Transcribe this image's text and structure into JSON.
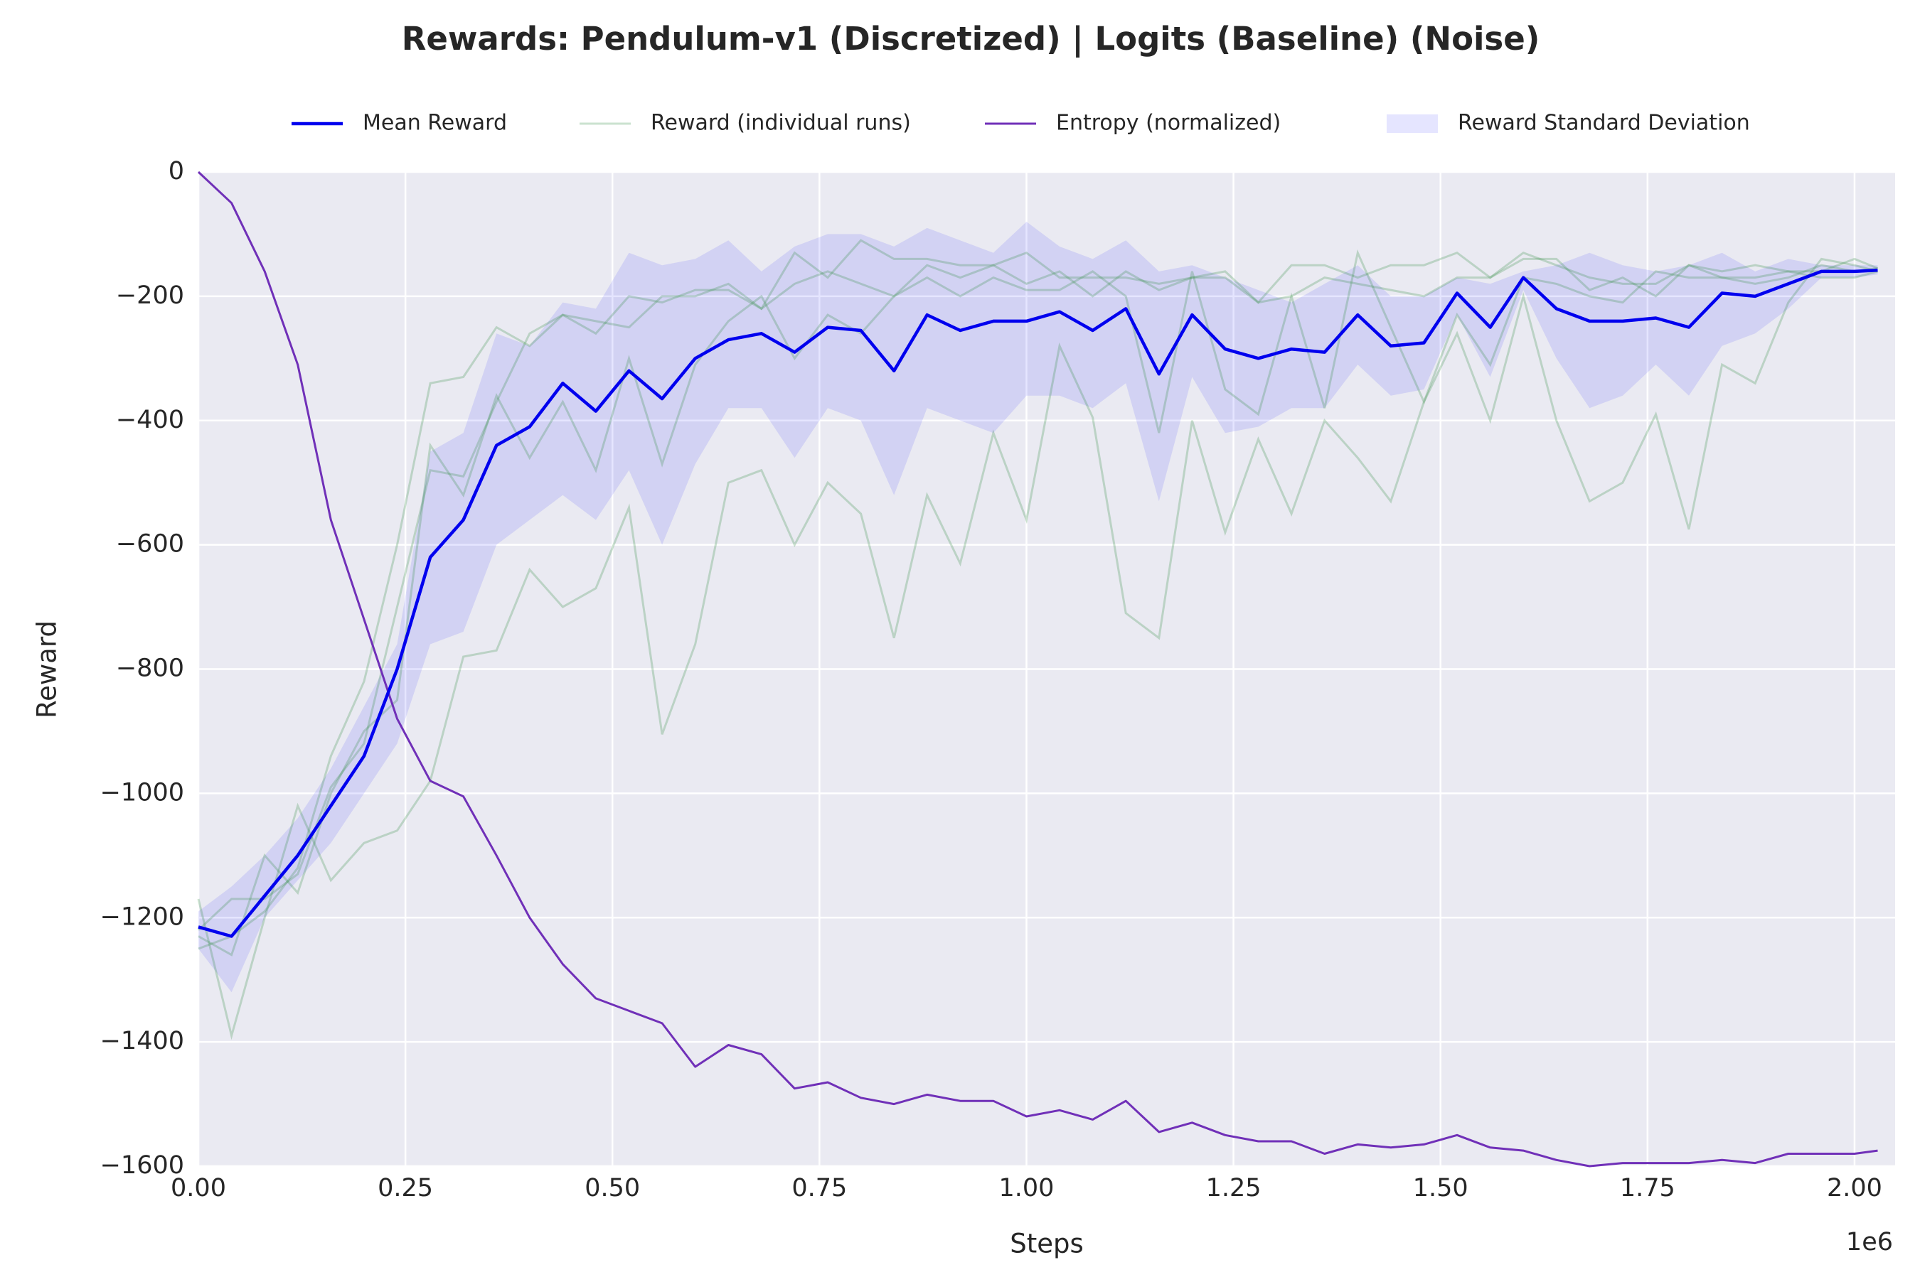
{
  "chart_data": {
    "type": "line",
    "title": "Rewards: Pendulum-v1 (Discretized) | Logits (Baseline) (Noise)",
    "x_label": "Steps",
    "y_label": "Reward",
    "x_offset_label": "1e6",
    "grid": true,
    "legend_position": "upper center",
    "x": [
      0,
      40000,
      80000,
      120000,
      160000,
      200000,
      240000,
      280000,
      320000,
      360000,
      400000,
      440000,
      480000,
      520000,
      560000,
      600000,
      640000,
      680000,
      720000,
      760000,
      800000,
      840000,
      880000,
      920000,
      960000,
      1000000,
      1040000,
      1080000,
      1120000,
      1160000,
      1200000,
      1240000,
      1280000,
      1320000,
      1360000,
      1400000,
      1440000,
      1480000,
      1520000,
      1560000,
      1600000,
      1640000,
      1680000,
      1720000,
      1760000,
      1800000,
      1840000,
      1880000,
      1920000,
      1960000,
      2000000,
      2028000
    ],
    "xlim": [
      0,
      2049000
    ],
    "xticks": [
      {
        "value": 0,
        "label": "0.00"
      },
      {
        "value": 250000,
        "label": "0.25"
      },
      {
        "value": 500000,
        "label": "0.50"
      },
      {
        "value": 750000,
        "label": "0.75"
      },
      {
        "value": 1000000,
        "label": "1.00"
      },
      {
        "value": 1250000,
        "label": "1.25"
      },
      {
        "value": 1500000,
        "label": "1.50"
      },
      {
        "value": 1750000,
        "label": "1.75"
      },
      {
        "value": 2000000,
        "label": "2.00"
      }
    ],
    "ylim": [
      -1600,
      0
    ],
    "yticks": [
      {
        "value": -1600,
        "label": "−1600"
      },
      {
        "value": -1400,
        "label": "−1400"
      },
      {
        "value": -1200,
        "label": "−1200"
      },
      {
        "value": -1000,
        "label": "−1000"
      },
      {
        "value": -800,
        "label": "−800"
      },
      {
        "value": -600,
        "label": "−600"
      },
      {
        "value": -400,
        "label": "−400"
      },
      {
        "value": -200,
        "label": "−200"
      },
      0
    ],
    "series": [
      {
        "name": "Mean Reward",
        "color": "#0000ee",
        "values": [
          -1215,
          -1230,
          -1165,
          -1100,
          -1020,
          -940,
          -800,
          -620,
          -560,
          -440,
          -410,
          -340,
          -385,
          -320,
          -365,
          -300,
          -270,
          -260,
          -290,
          -250,
          -255,
          -320,
          -230,
          -255,
          -240,
          -240,
          -225,
          -255,
          -220,
          -325,
          -230,
          -285,
          -300,
          -285,
          -290,
          -230,
          -280,
          -275,
          -195,
          -250,
          -170,
          -220,
          -240,
          -240,
          -235,
          -250,
          -195,
          -200,
          -180,
          -160,
          -160,
          -158
        ]
      },
      {
        "name": "Reward (individual runs)",
        "color": "#2e8b3e",
        "runs": [
          [
            -1170,
            -1390,
            -1200,
            -1020,
            -1140,
            -1080,
            -1060,
            -980,
            -780,
            -770,
            -640,
            -700,
            -670,
            -540,
            -905,
            -760,
            -500,
            -480,
            -600,
            -500,
            -550,
            -750,
            -520,
            -630,
            -420,
            -560,
            -280,
            -395,
            -710,
            -750,
            -400,
            -580,
            -430,
            -550,
            -400,
            -460,
            -530,
            -370,
            -260,
            -400,
            -200,
            -400,
            -530,
            -500,
            -390,
            -575,
            -310,
            -340,
            -210,
            -140,
            -150,
            -160
          ],
          [
            -1250,
            -1230,
            -1190,
            -1120,
            -940,
            -820,
            -600,
            -340,
            -330,
            -250,
            -280,
            -230,
            -260,
            -200,
            -210,
            -190,
            -190,
            -220,
            -180,
            -160,
            -180,
            -200,
            -150,
            -170,
            -150,
            -180,
            -160,
            -200,
            -160,
            -190,
            -170,
            -160,
            -210,
            -150,
            -150,
            -170,
            -150,
            -150,
            -130,
            -170,
            -130,
            -150,
            -170,
            -180,
            -180,
            -150,
            -160,
            -150,
            -160,
            -170,
            -170,
            -160
          ],
          [
            -1230,
            -1260,
            -1100,
            -1160,
            -1000,
            -900,
            -850,
            -440,
            -520,
            -360,
            -460,
            -370,
            -480,
            -300,
            -470,
            -310,
            -240,
            -200,
            -300,
            -230,
            -260,
            -200,
            -170,
            -200,
            -170,
            -190,
            -190,
            -160,
            -200,
            -420,
            -160,
            -350,
            -390,
            -200,
            -380,
            -130,
            -250,
            -370,
            -230,
            -310,
            -170,
            -180,
            -200,
            -210,
            -160,
            -170,
            -170,
            -170,
            -160,
            -160,
            -140,
            -155
          ],
          [
            -1220,
            -1170,
            -1170,
            -1130,
            -990,
            -920,
            -700,
            -480,
            -490,
            -370,
            -260,
            -230,
            -240,
            -250,
            -200,
            -200,
            -180,
            -220,
            -130,
            -170,
            -110,
            -140,
            -140,
            -150,
            -150,
            -130,
            -170,
            -170,
            -170,
            -180,
            -170,
            -170,
            -210,
            -200,
            -170,
            -180,
            -190,
            -200,
            -170,
            -170,
            -140,
            -140,
            -190,
            -170,
            -200,
            -150,
            -170,
            -180,
            -170,
            -150,
            -160,
            -155
          ]
        ]
      },
      {
        "name": "Entropy (normalized)",
        "color": "#7030b8",
        "values": [
          0,
          -50,
          -160,
          -310,
          -560,
          -720,
          -880,
          -980,
          -1005,
          -1100,
          -1200,
          -1275,
          -1330,
          -1350,
          -1370,
          -1440,
          -1405,
          -1420,
          -1475,
          -1465,
          -1490,
          -1500,
          -1485,
          -1495,
          -1495,
          -1520,
          -1510,
          -1525,
          -1495,
          -1545,
          -1530,
          -1550,
          -1560,
          -1560,
          -1580,
          -1565,
          -1570,
          -1565,
          -1550,
          -1570,
          -1575,
          -1590,
          -1600,
          -1595,
          -1595,
          -1595,
          -1590,
          -1595,
          -1580,
          -1580,
          -1580,
          -1575
        ]
      },
      {
        "name": "Reward Standard Deviation",
        "color": "#0000ff",
        "upper": [
          -1190,
          -1150,
          -1100,
          -1040,
          -960,
          -860,
          -760,
          -450,
          -420,
          -260,
          -280,
          -210,
          -220,
          -130,
          -150,
          -140,
          -110,
          -160,
          -120,
          -100,
          -100,
          -120,
          -90,
          -110,
          -130,
          -80,
          -120,
          -140,
          -110,
          -160,
          -150,
          -170,
          -190,
          -210,
          -180,
          -150,
          -200,
          -200,
          -170,
          -180,
          -160,
          -150,
          -130,
          -150,
          -160,
          -150,
          -130,
          -160,
          -140,
          -150,
          -150,
          -150
        ],
        "lower": [
          -1250,
          -1320,
          -1200,
          -1140,
          -1080,
          -1000,
          -920,
          -760,
          -740,
          -600,
          -560,
          -520,
          -560,
          -480,
          -600,
          -470,
          -380,
          -380,
          -460,
          -380,
          -400,
          -520,
          -380,
          -400,
          -420,
          -360,
          -360,
          -380,
          -340,
          -530,
          -330,
          -420,
          -410,
          -380,
          -380,
          -310,
          -360,
          -350,
          -230,
          -330,
          -190,
          -300,
          -380,
          -360,
          -310,
          -360,
          -280,
          -260,
          -220,
          -170,
          -170,
          -165
        ]
      }
    ]
  }
}
